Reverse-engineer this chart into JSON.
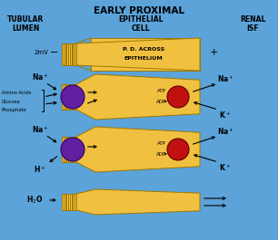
{
  "bg_color": "#5ba3d9",
  "cell_color": "#f0c040",
  "cell_edge_color": "#a07800",
  "title": "EARLY PROXIMAL",
  "col1_label": "TUBULAR\nLUMEN",
  "col2_label": "EPITHELIAL\nCELL",
  "col3_label": "RENAL\nISF",
  "purple_color": "#6020a0",
  "red_color": "#c01010",
  "text_color": "black",
  "title_fontsize": 7.5,
  "label_fontsize": 5.5,
  "body_fontsize": 4.5,
  "ion_fontsize": 5.5
}
